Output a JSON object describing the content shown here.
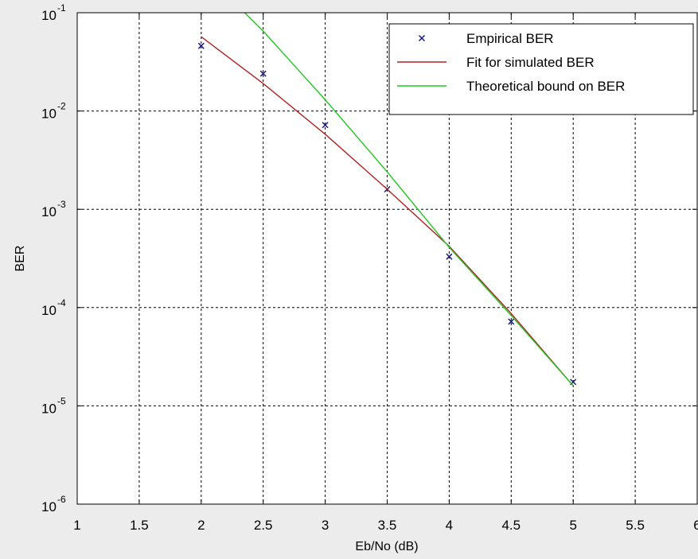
{
  "chart_data": {
    "type": "line",
    "xlabel": "Eb/No (dB)",
    "ylabel": "BER",
    "xlim": [
      1,
      6
    ],
    "ylim": [
      1e-06,
      0.1
    ],
    "y_scale": "log",
    "grid": true,
    "legend_position": "top-right",
    "x_ticks": [
      {
        "value": 1,
        "label": "1"
      },
      {
        "value": 1.5,
        "label": "1.5"
      },
      {
        "value": 2,
        "label": "2"
      },
      {
        "value": 2.5,
        "label": "2.5"
      },
      {
        "value": 3,
        "label": "3"
      },
      {
        "value": 3.5,
        "label": "3.5"
      },
      {
        "value": 4,
        "label": "4"
      },
      {
        "value": 4.5,
        "label": "4.5"
      },
      {
        "value": 5,
        "label": "5"
      },
      {
        "value": 5.5,
        "label": "5.5"
      },
      {
        "value": 6,
        "label": "6"
      }
    ],
    "y_ticks": [
      {
        "value": 0.1,
        "base": "10",
        "exp": "-1"
      },
      {
        "value": 0.01,
        "base": "10",
        "exp": "-2"
      },
      {
        "value": 0.001,
        "base": "10",
        "exp": "-3"
      },
      {
        "value": 0.0001,
        "base": "10",
        "exp": "-4"
      },
      {
        "value": 1e-05,
        "base": "10",
        "exp": "-5"
      },
      {
        "value": 1e-06,
        "base": "10",
        "exp": "-6"
      }
    ],
    "series": [
      {
        "name": "Empirical BER",
        "style": "markers",
        "marker": "x",
        "color": "#1a1a8c",
        "x": [
          2,
          2.5,
          3,
          3.5,
          4,
          4.5,
          5
        ],
        "y": [
          0.046,
          0.024,
          0.0072,
          0.0016,
          0.00033,
          7.2e-05,
          1.75e-05
        ]
      },
      {
        "name": "Fit for simulated BER",
        "style": "line",
        "color": "#b22222",
        "x": [
          2,
          2.5,
          3,
          3.5,
          4,
          4.5,
          5
        ],
        "y": [
          0.057,
          0.019,
          0.0058,
          0.0016,
          0.00042,
          8.7e-05,
          1.6e-05
        ]
      },
      {
        "name": "Theoretical bound on BER",
        "style": "line",
        "color": "#1ec81e",
        "x": [
          2.35,
          2.5,
          3,
          3.5,
          4,
          4.5,
          5
        ],
        "y": [
          0.1,
          0.065,
          0.013,
          0.0024,
          0.00041,
          8.3e-05,
          1.6e-05
        ]
      }
    ]
  }
}
